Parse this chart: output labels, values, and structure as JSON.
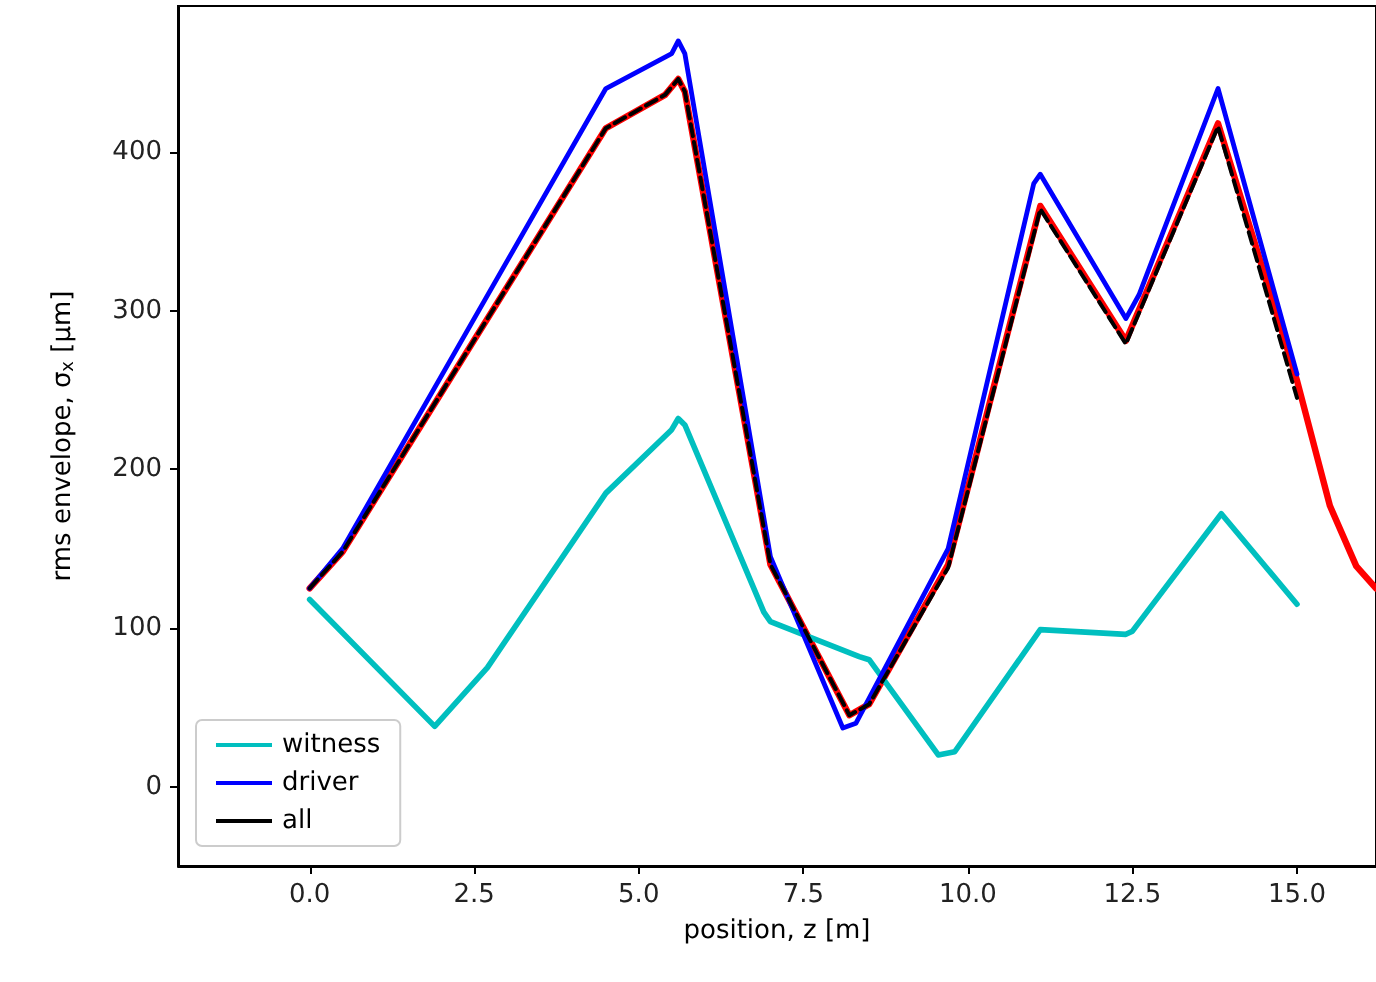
{
  "chart_data": {
    "type": "line",
    "xlabel": "position, z [m]",
    "ylabel": "rms envelope, σ$_{x}$ [μm]",
    "xlim": [
      -2,
      16.2
    ],
    "ylim": [
      -50,
      492
    ],
    "xticks": [
      {
        "value": 0,
        "label": "0.0"
      },
      {
        "value": 2.5,
        "label": "2.5"
      },
      {
        "value": 5,
        "label": "5.0"
      },
      {
        "value": 7.5,
        "label": "7.5"
      },
      {
        "value": 10,
        "label": "10.0"
      },
      {
        "value": 12.5,
        "label": "12.5"
      },
      {
        "value": 15,
        "label": "15.0"
      }
    ],
    "yticks": [
      0,
      100,
      200,
      300,
      400
    ],
    "grid": false,
    "legend": "bottom left",
    "marker": "none",
    "series": [
      {
        "color": "#ff0000",
        "x": [
          0,
          0.5,
          4.5,
          5.4,
          5.6,
          5.7,
          7.0,
          8.2,
          8.5,
          9.7,
          11.1,
          12.4,
          13.8,
          15.0,
          15.5,
          15.9,
          16.2
        ],
        "values": [
          125,
          148,
          415,
          436,
          446,
          438,
          140,
          45,
          52,
          140,
          366,
          281,
          418,
          256,
          177,
          139,
          125
        ]
      },
      {
        "name": "witness",
        "color": "#00bfbf",
        "x": [
          0,
          1.9,
          2.7,
          4.5,
          5.5,
          5.6,
          5.7,
          6.9,
          7.0,
          8.35,
          8.5,
          9.55,
          9.8,
          11.1,
          12.4,
          12.5,
          13.85,
          15.0
        ],
        "values": [
          118,
          38,
          75,
          185,
          225,
          232,
          228,
          110,
          104,
          82,
          80,
          20,
          22,
          99,
          96,
          98,
          172,
          115
        ]
      },
      {
        "name": "driver",
        "color": "#0000ff",
        "x": [
          0,
          0.5,
          4.5,
          5.5,
          5.6,
          5.7,
          7.0,
          8.1,
          8.3,
          9.7,
          11.0,
          11.1,
          12.4,
          12.6,
          13.8,
          15.0
        ],
        "values": [
          125,
          150,
          440,
          462,
          470,
          462,
          145,
          37,
          40,
          150,
          380,
          386,
          295,
          310,
          440,
          260
        ]
      },
      {
        "name": "all",
        "color": "#000000",
        "line_style": "dashed",
        "x": [
          0,
          0.5,
          4.5,
          5.4,
          5.6,
          5.7,
          7.0,
          8.2,
          8.5,
          9.7,
          11.1,
          12.4,
          13.8,
          15.0
        ],
        "values": [
          125,
          148,
          415,
          436,
          446,
          438,
          140,
          45,
          52,
          138,
          364,
          279,
          416,
          245
        ]
      }
    ]
  }
}
